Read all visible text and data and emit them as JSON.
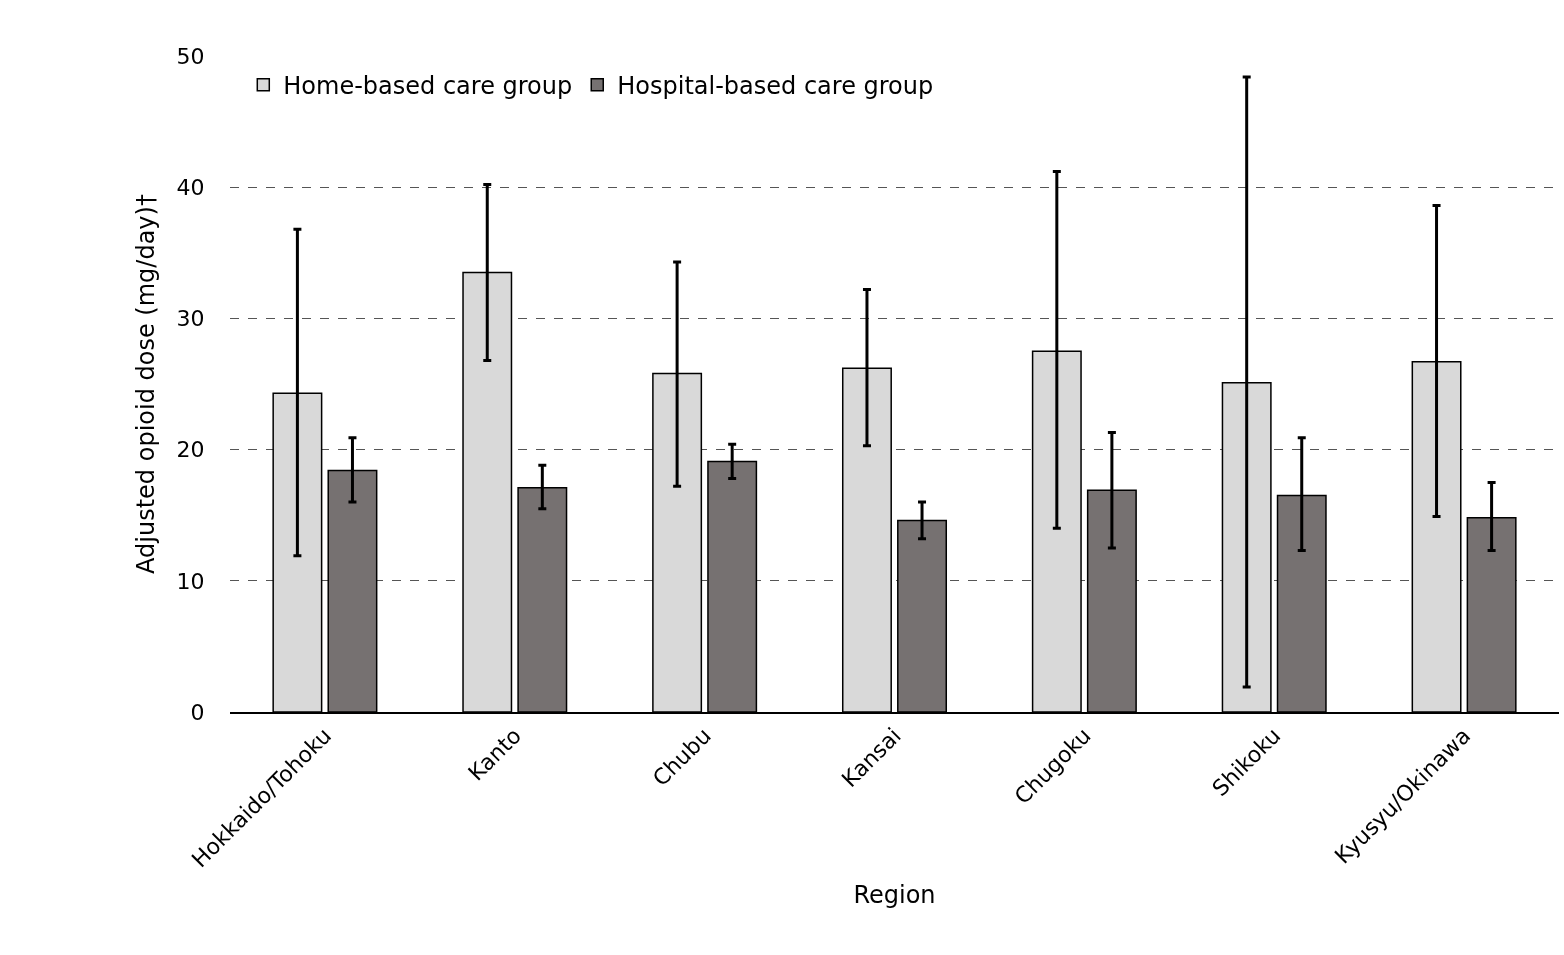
{
  "chart_data": {
    "type": "bar",
    "xlabel": "Region",
    "ylabel": "Adjusted opioid dose (mg/day)†",
    "categories": [
      "Hokkaido/Tohoku",
      "Kanto",
      "Chubu",
      "Kansai",
      "Chugoku",
      "Shikoku",
      "Kyusyu/Okinawa"
    ],
    "series": [
      {
        "name": "Home-based care group",
        "color": "#d9d9d9",
        "values": [
          24.3,
          33.5,
          25.8,
          26.2,
          27.5,
          25.1,
          26.7
        ],
        "errors": [
          [
            11.9,
            36.8
          ],
          [
            26.8,
            40.2
          ],
          [
            17.2,
            34.3
          ],
          [
            20.3,
            32.2
          ],
          [
            14.0,
            41.2
          ],
          [
            1.9,
            48.4
          ],
          [
            14.9,
            38.6
          ]
        ]
      },
      {
        "name": "Hospital-based care group",
        "color": "#767171",
        "values": [
          18.4,
          17.1,
          19.1,
          14.6,
          16.9,
          16.5,
          14.8
        ],
        "errors": [
          [
            16.0,
            20.9
          ],
          [
            15.5,
            18.8
          ],
          [
            17.8,
            20.4
          ],
          [
            13.2,
            16.0
          ],
          [
            12.5,
            21.3
          ],
          [
            12.3,
            20.9
          ],
          [
            12.3,
            17.5
          ]
        ]
      }
    ],
    "ylim": [
      0,
      50
    ],
    "yticks": [
      0,
      10,
      20,
      30,
      40,
      50
    ],
    "grid": "y",
    "legend": "top left"
  }
}
